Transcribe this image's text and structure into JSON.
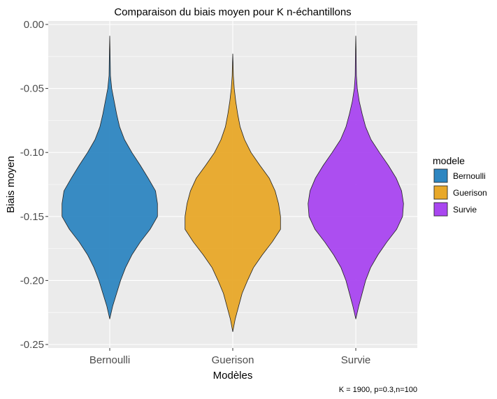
{
  "chart_data": {
    "type": "violin",
    "title": "Comparaison du biais moyen pour K n-échantillons",
    "xlabel": "Modèles",
    "ylabel": "Biais moyen",
    "categories": [
      "Bernoulli",
      "Guerison",
      "Survie"
    ],
    "ylim": [
      -0.25,
      0.0
    ],
    "yticks": [
      0.0,
      -0.05,
      -0.1,
      -0.15,
      -0.2,
      -0.25
    ],
    "ytick_labels": [
      "0.00",
      "-0.05",
      "-0.10",
      "-0.15",
      "-0.20",
      "-0.25"
    ],
    "grid": true,
    "legend": {
      "title": "modele",
      "position": "right",
      "entries": [
        "Bernoulli",
        "Guerison",
        "Survie"
      ]
    },
    "caption": "K = 1900, p=0.3,n=100",
    "series": [
      {
        "name": "Bernoulli",
        "color": "#2E86C1",
        "ymin": -0.23,
        "ymax": -0.009,
        "profile": [
          [
            -0.009,
            0.0
          ],
          [
            -0.02,
            0.006
          ],
          [
            -0.04,
            0.014
          ],
          [
            -0.05,
            0.04
          ],
          [
            -0.06,
            0.09
          ],
          [
            -0.07,
            0.14
          ],
          [
            -0.08,
            0.2
          ],
          [
            -0.09,
            0.3
          ],
          [
            -0.1,
            0.45
          ],
          [
            -0.11,
            0.62
          ],
          [
            -0.12,
            0.78
          ],
          [
            -0.13,
            0.93
          ],
          [
            -0.14,
            0.97
          ],
          [
            -0.15,
            0.97
          ],
          [
            -0.16,
            0.82
          ],
          [
            -0.17,
            0.62
          ],
          [
            -0.18,
            0.45
          ],
          [
            -0.19,
            0.32
          ],
          [
            -0.2,
            0.22
          ],
          [
            -0.21,
            0.14
          ],
          [
            -0.22,
            0.06
          ],
          [
            -0.23,
            0.0
          ]
        ]
      },
      {
        "name": "Guerison",
        "color": "#E8A829",
        "ymin": -0.24,
        "ymax": -0.023,
        "profile": [
          [
            -0.023,
            0.0
          ],
          [
            -0.03,
            0.006
          ],
          [
            -0.04,
            0.012
          ],
          [
            -0.05,
            0.03
          ],
          [
            -0.06,
            0.06
          ],
          [
            -0.07,
            0.1
          ],
          [
            -0.08,
            0.15
          ],
          [
            -0.09,
            0.24
          ],
          [
            -0.1,
            0.37
          ],
          [
            -0.11,
            0.55
          ],
          [
            -0.12,
            0.74
          ],
          [
            -0.13,
            0.86
          ],
          [
            -0.14,
            0.93
          ],
          [
            -0.15,
            0.97
          ],
          [
            -0.16,
            0.97
          ],
          [
            -0.17,
            0.8
          ],
          [
            -0.18,
            0.6
          ],
          [
            -0.19,
            0.42
          ],
          [
            -0.2,
            0.3
          ],
          [
            -0.21,
            0.19
          ],
          [
            -0.22,
            0.12
          ],
          [
            -0.23,
            0.05
          ],
          [
            -0.24,
            0.0
          ]
        ]
      },
      {
        "name": "Survie",
        "color": "#A946F0",
        "ymin": -0.23,
        "ymax": -0.009,
        "profile": [
          [
            -0.009,
            0.0
          ],
          [
            -0.02,
            0.006
          ],
          [
            -0.04,
            0.012
          ],
          [
            -0.05,
            0.03
          ],
          [
            -0.06,
            0.07
          ],
          [
            -0.07,
            0.13
          ],
          [
            -0.08,
            0.2
          ],
          [
            -0.09,
            0.31
          ],
          [
            -0.1,
            0.48
          ],
          [
            -0.11,
            0.66
          ],
          [
            -0.12,
            0.82
          ],
          [
            -0.13,
            0.93
          ],
          [
            -0.14,
            0.97
          ],
          [
            -0.15,
            0.95
          ],
          [
            -0.16,
            0.83
          ],
          [
            -0.17,
            0.63
          ],
          [
            -0.18,
            0.45
          ],
          [
            -0.19,
            0.3
          ],
          [
            -0.2,
            0.2
          ],
          [
            -0.21,
            0.13
          ],
          [
            -0.22,
            0.06
          ],
          [
            -0.23,
            0.0
          ]
        ]
      }
    ]
  }
}
